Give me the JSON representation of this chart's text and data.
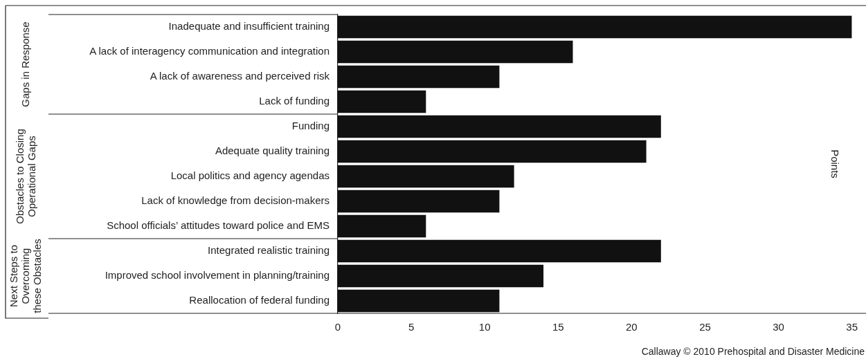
{
  "chart_data": {
    "type": "bar",
    "orientation": "horizontal",
    "categories": [
      "Inadequate and insufficient training",
      "A lack of interagency communication and integration",
      "A lack of awareness and perceived risk",
      "Lack of funding",
      "Funding",
      "Adequate quality training",
      "Local politics and agency agendas",
      "Lack of knowledge from decision-makers",
      "School officials’ attitudes toward police and EMS",
      "Integrated realistic training",
      "Improved school involvement in planning/training",
      "Reallocation of federal funding"
    ],
    "values": [
      35,
      16,
      11,
      6,
      22,
      21,
      12,
      11,
      6,
      22,
      14,
      11
    ],
    "color": "#111111",
    "xlim": [
      0,
      35
    ],
    "xticks": [
      0,
      5,
      10,
      15,
      20,
      25,
      30,
      35
    ],
    "grid": false,
    "legend": false,
    "annotations": [
      "Gaps in Response",
      "Obstacles to Closing Operational Gaps",
      "Next Steps to Overcoming these Obstacles",
      "Points",
      "Callaway © 2010 Prehospital and Disaster Medicine"
    ]
  }
}
